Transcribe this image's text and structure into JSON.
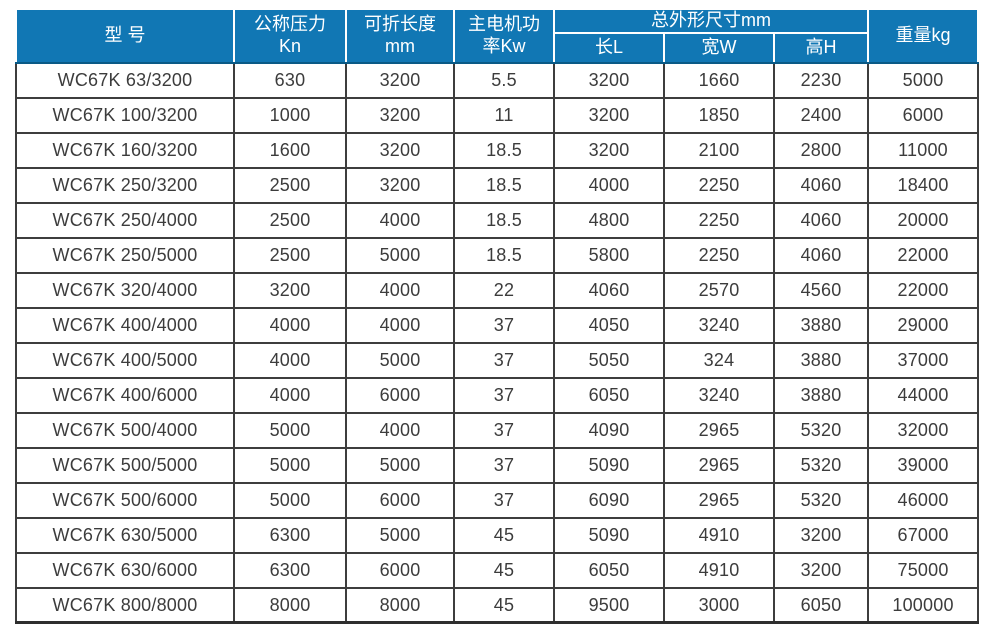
{
  "table": {
    "headers": {
      "model": "型 号",
      "pressure": "公称压力\nKn",
      "fold_length": "可折长度\nmm",
      "motor_power": "主电机功\n率Kw",
      "dimensions_group": "总外形尺寸mm",
      "dim_length": "长L",
      "dim_width": "宽W",
      "dim_height": "高H",
      "weight": "重量kg"
    },
    "rows": [
      [
        "WC67K 63/3200",
        "630",
        "3200",
        "5.5",
        "3200",
        "1660",
        "2230",
        "5000"
      ],
      [
        "WC67K 100/3200",
        "1000",
        "3200",
        "11",
        "3200",
        "1850",
        "2400",
        "6000"
      ],
      [
        "WC67K 160/3200",
        "1600",
        "3200",
        "18.5",
        "3200",
        "2100",
        "2800",
        "11000"
      ],
      [
        "WC67K 250/3200",
        "2500",
        "3200",
        "18.5",
        "4000",
        "2250",
        "4060",
        "18400"
      ],
      [
        "WC67K 250/4000",
        "2500",
        "4000",
        "18.5",
        "4800",
        "2250",
        "4060",
        "20000"
      ],
      [
        "WC67K 250/5000",
        "2500",
        "5000",
        "18.5",
        "5800",
        "2250",
        "4060",
        "22000"
      ],
      [
        "WC67K 320/4000",
        "3200",
        "4000",
        "22",
        "4060",
        "2570",
        "4560",
        "22000"
      ],
      [
        "WC67K 400/4000",
        "4000",
        "4000",
        "37",
        "4050",
        "3240",
        "3880",
        "29000"
      ],
      [
        "WC67K 400/5000",
        "4000",
        "5000",
        "37",
        "5050",
        "324",
        "3880",
        "37000"
      ],
      [
        "WC67K 400/6000",
        "4000",
        "6000",
        "37",
        "6050",
        "3240",
        "3880",
        "44000"
      ],
      [
        "WC67K 500/4000",
        "5000",
        "4000",
        "37",
        "4090",
        "2965",
        "5320",
        "32000"
      ],
      [
        "WC67K 500/5000",
        "5000",
        "5000",
        "37",
        "5090",
        "2965",
        "5320",
        "39000"
      ],
      [
        "WC67K 500/6000",
        "5000",
        "6000",
        "37",
        "6090",
        "2965",
        "5320",
        "46000"
      ],
      [
        "WC67K 630/5000",
        "6300",
        "5000",
        "45",
        "5090",
        "4910",
        "3200",
        "67000"
      ],
      [
        "WC67K 630/6000",
        "6300",
        "6000",
        "45",
        "6050",
        "4910",
        "3200",
        "75000"
      ],
      [
        "WC67K 800/8000",
        "8000",
        "8000",
        "45",
        "9500",
        "3000",
        "6050",
        "100000"
      ]
    ]
  },
  "colors": {
    "header_bg": "#1177b4",
    "header_edge": "#0a5a86",
    "header_text": "#ffffff",
    "grid_line": "#3d3d3d",
    "body_text": "#3c3c3c"
  }
}
